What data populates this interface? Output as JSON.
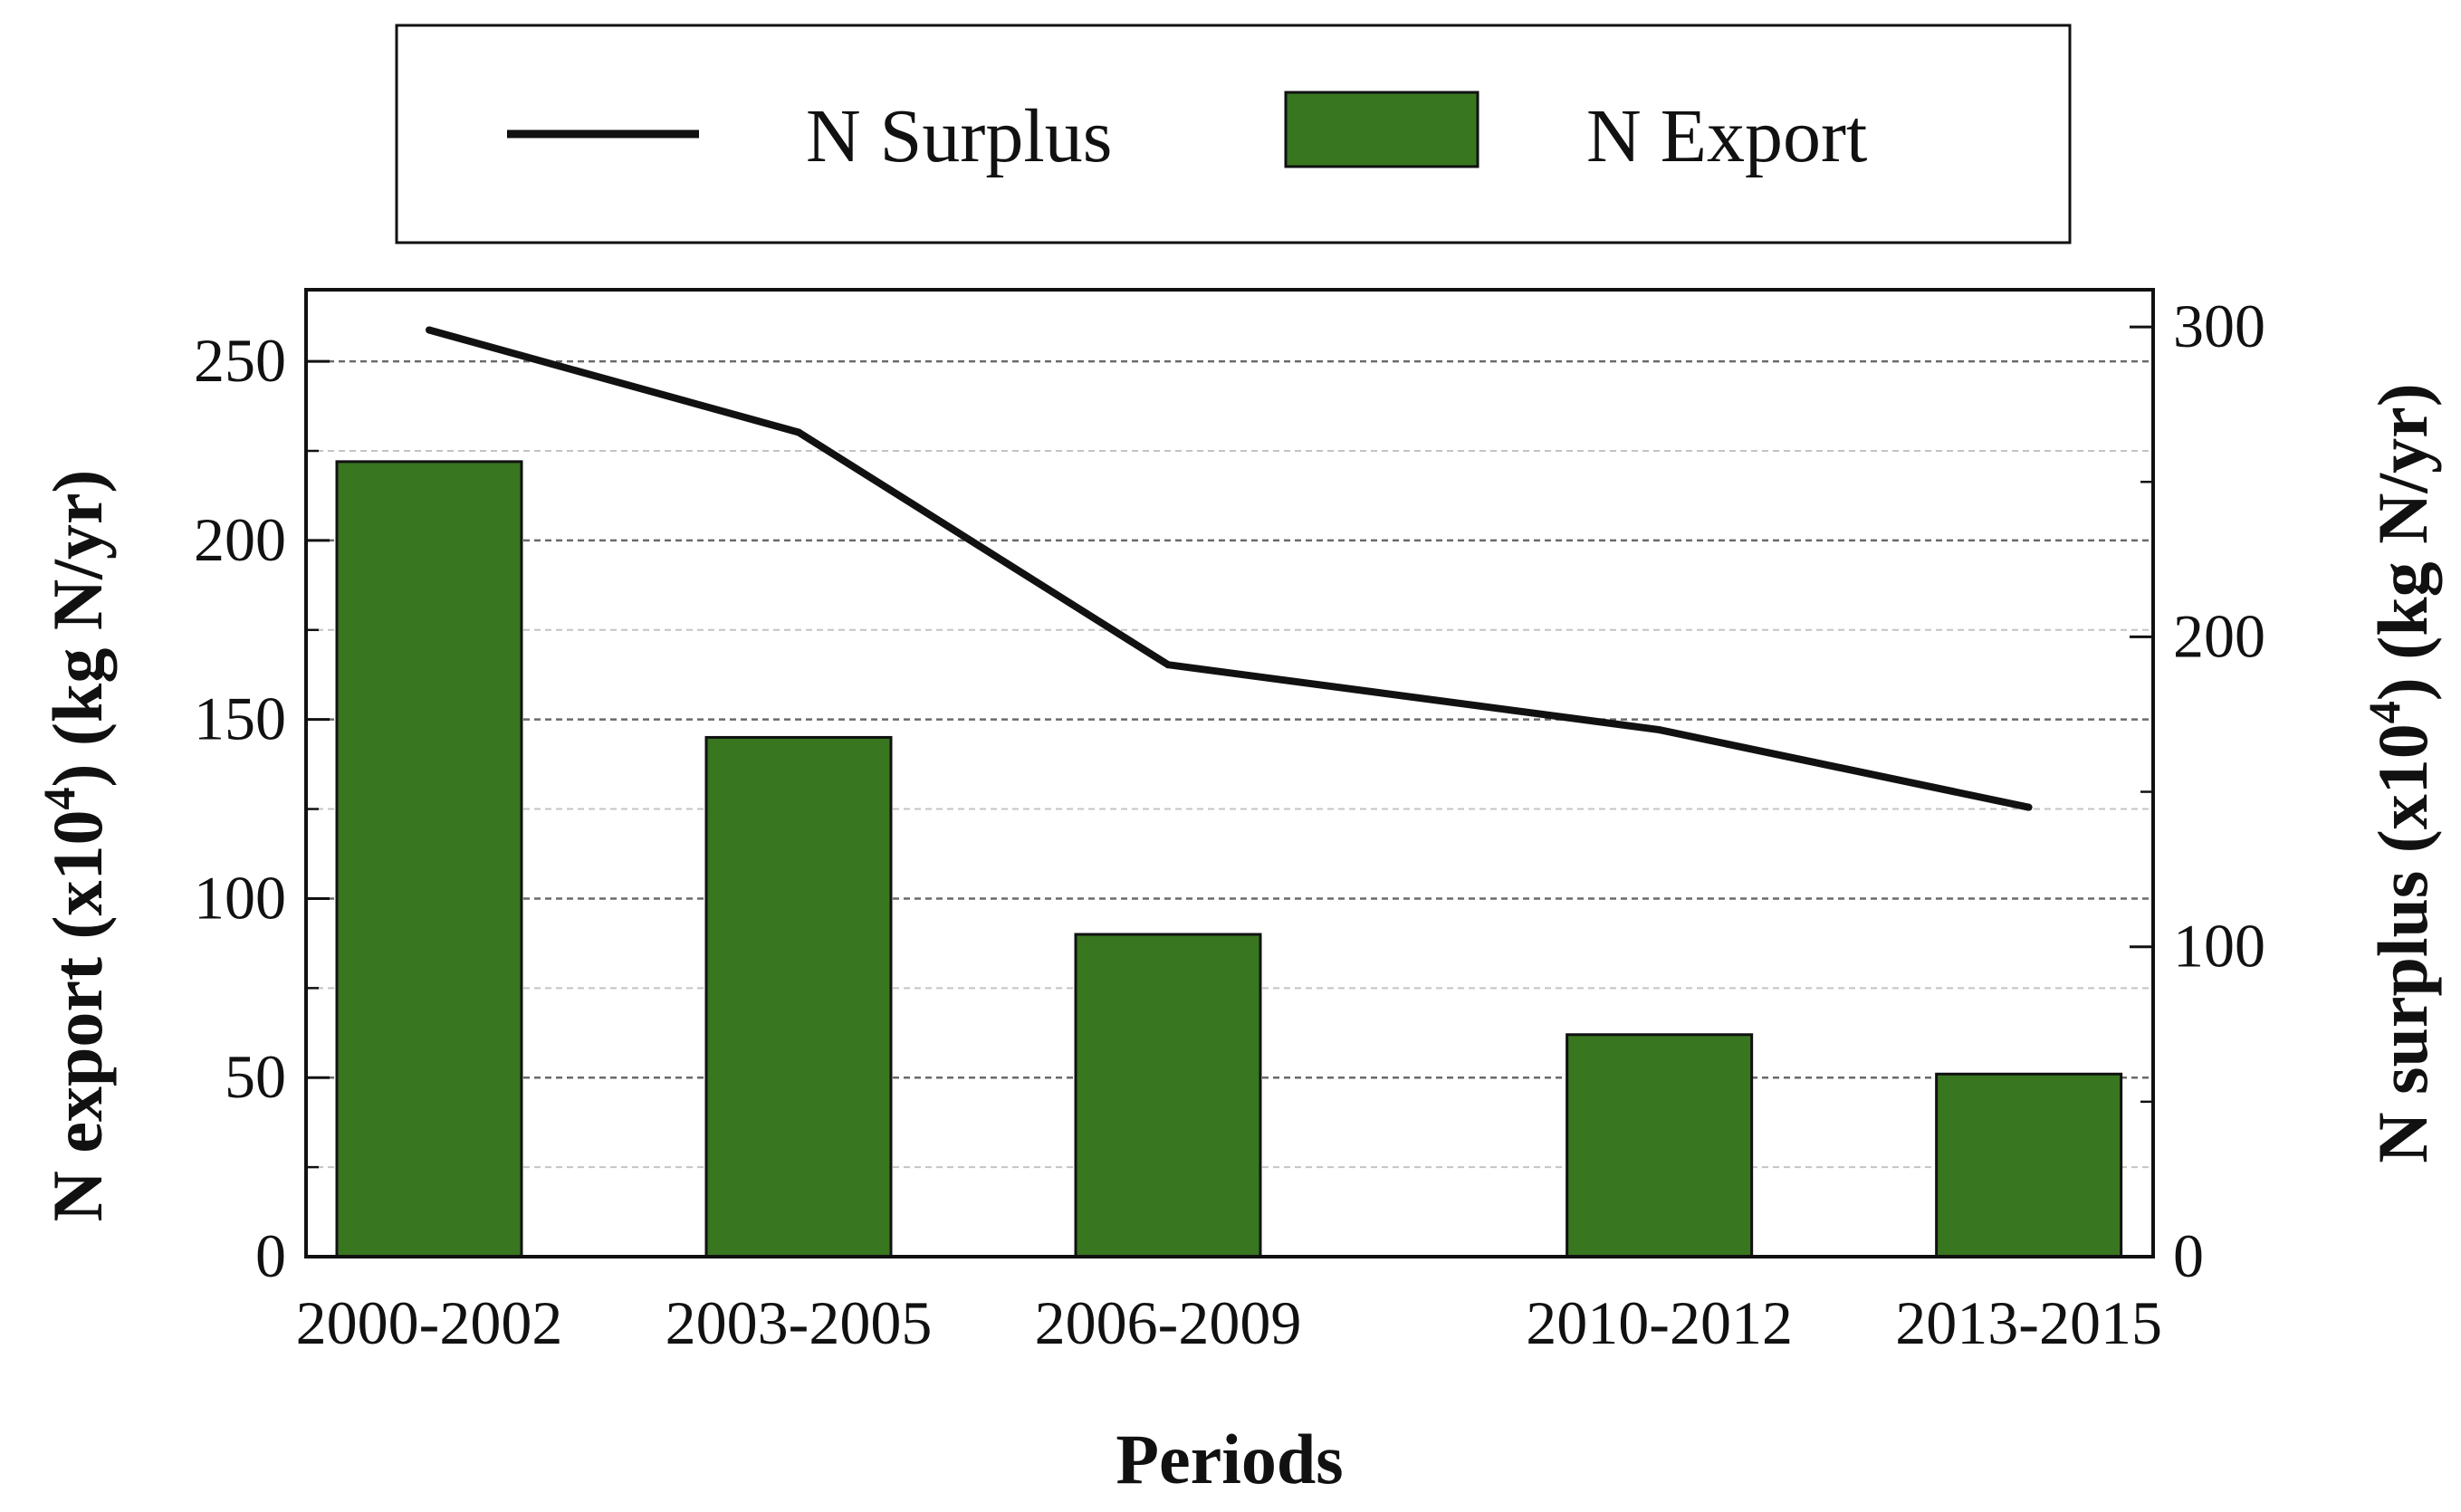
{
  "chart_data": {
    "type": "bar",
    "categories": [
      "2000-2002",
      "2003-2005",
      "2006-2009",
      "2010-2012",
      "2013-2015"
    ],
    "x_positions": [
      0,
      1,
      2,
      3.33,
      4.33
    ],
    "series": [
      {
        "name": "N Export",
        "type": "bar",
        "axis": "left",
        "color": "#387620",
        "values": [
          222,
          145,
          90,
          62,
          51
        ]
      },
      {
        "name": "N Surplus",
        "type": "line",
        "axis": "right",
        "color": "#111111",
        "values": [
          299,
          266,
          191,
          170,
          145
        ]
      }
    ],
    "xlabel": "Periods",
    "ylabel": {
      "prefix": "N export (x10",
      "superscript": "4",
      "suffix": ")  (kg N/yr)"
    },
    "y2label": {
      "prefix": "N surplus (x10",
      "superscript": "4",
      "suffix": ")  (kg N/yr)"
    },
    "ylim": [
      0,
      270
    ],
    "y2lim": [
      0,
      312
    ],
    "yticks": [
      0,
      50,
      100,
      150,
      200,
      250
    ],
    "y2ticks": [
      0,
      100,
      200,
      300
    ],
    "grid": true,
    "legend": {
      "position": "top",
      "entries": [
        "N Surplus",
        "N Export"
      ]
    }
  }
}
